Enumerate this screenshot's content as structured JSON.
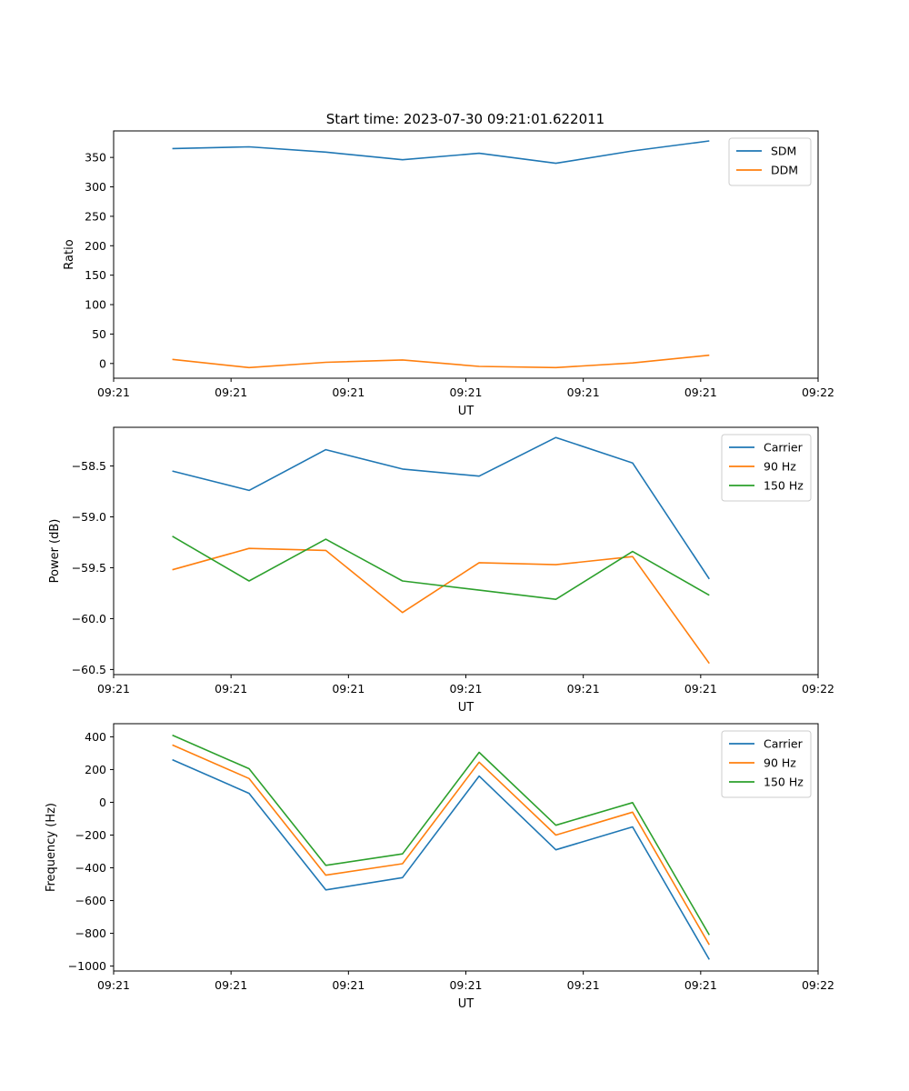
{
  "figure_title": "Start time: 2023-07-30 09:21:01.622011",
  "chart_data": [
    {
      "type": "line",
      "xlabel": "UT",
      "ylabel": "Ratio",
      "xlim": [
        0,
        9
      ],
      "ylim": [
        -25,
        395
      ],
      "xticks": [
        0,
        1.5,
        3,
        4.5,
        6,
        7.5,
        9
      ],
      "xtick_labels": [
        "09:21",
        "09:21",
        "09:21",
        "09:21",
        "09:21",
        "09:21",
        "09:22"
      ],
      "yticks": [
        0,
        50,
        100,
        150,
        200,
        250,
        300,
        350
      ],
      "ytick_labels": [
        "0",
        "50",
        "100",
        "150",
        "200",
        "250",
        "300",
        "350"
      ],
      "x": [
        0.75,
        1.73,
        2.71,
        3.69,
        4.67,
        5.65,
        6.63,
        7.61
      ],
      "legend_position": "top-right",
      "series": [
        {
          "name": "SDM",
          "color": "#1f77b4",
          "values": [
            365,
            368,
            359,
            346,
            357,
            340,
            361,
            378
          ]
        },
        {
          "name": "DDM",
          "color": "#ff7f0e",
          "values": [
            7,
            -7,
            2,
            6,
            -5,
            -7,
            1,
            14
          ]
        }
      ]
    },
    {
      "type": "line",
      "xlabel": "UT",
      "ylabel": "Power (dB)",
      "xlim": [
        0,
        9
      ],
      "ylim": [
        -60.55,
        -58.12
      ],
      "xticks": [
        0,
        1.5,
        3,
        4.5,
        6,
        7.5,
        9
      ],
      "xtick_labels": [
        "09:21",
        "09:21",
        "09:21",
        "09:21",
        "09:21",
        "09:21",
        "09:22"
      ],
      "yticks": [
        -60.5,
        -60.0,
        -59.5,
        -59.0,
        -58.5
      ],
      "ytick_labels": [
        "−60.5",
        "−60.0",
        "−59.5",
        "−59.0",
        "−58.5"
      ],
      "x": [
        0.75,
        1.73,
        2.71,
        3.69,
        4.67,
        5.65,
        6.63,
        7.61
      ],
      "legend_position": "top-right",
      "series": [
        {
          "name": "Carrier",
          "color": "#1f77b4",
          "values": [
            -58.55,
            -58.74,
            -58.34,
            -58.53,
            -58.6,
            -58.22,
            -58.47,
            -59.61
          ]
        },
        {
          "name": "90 Hz",
          "color": "#ff7f0e",
          "values": [
            -59.52,
            -59.31,
            -59.33,
            -59.94,
            -59.45,
            -59.47,
            -59.39,
            -60.44
          ]
        },
        {
          "name": "150 Hz",
          "color": "#2ca02c",
          "values": [
            -59.19,
            -59.63,
            -59.22,
            -59.63,
            -59.72,
            -59.81,
            -59.34,
            -59.77
          ]
        }
      ]
    },
    {
      "type": "line",
      "xlabel": "UT",
      "ylabel": "Frequency (Hz)",
      "xlim": [
        0,
        9
      ],
      "ylim": [
        -1030,
        480
      ],
      "xticks": [
        0,
        1.5,
        3,
        4.5,
        6,
        7.5,
        9
      ],
      "xtick_labels": [
        "09:21",
        "09:21",
        "09:21",
        "09:21",
        "09:21",
        "09:21",
        "09:22"
      ],
      "yticks": [
        -1000,
        -800,
        -600,
        -400,
        -200,
        0,
        200,
        400
      ],
      "ytick_labels": [
        "−1000",
        "−800",
        "−600",
        "−400",
        "−200",
        "0",
        "200",
        "400"
      ],
      "x": [
        0.75,
        1.73,
        2.71,
        3.69,
        4.67,
        5.65,
        6.63,
        7.61
      ],
      "legend_position": "top-right",
      "series": [
        {
          "name": "Carrier",
          "color": "#1f77b4",
          "values": [
            260,
            55,
            -535,
            -460,
            160,
            -290,
            -150,
            -960
          ]
        },
        {
          "name": "90 Hz",
          "color": "#ff7f0e",
          "values": [
            350,
            145,
            -445,
            -375,
            245,
            -200,
            -60,
            -870
          ]
        },
        {
          "name": "150 Hz",
          "color": "#2ca02c",
          "values": [
            410,
            205,
            -385,
            -315,
            305,
            -140,
            -2,
            -810
          ]
        }
      ]
    }
  ]
}
